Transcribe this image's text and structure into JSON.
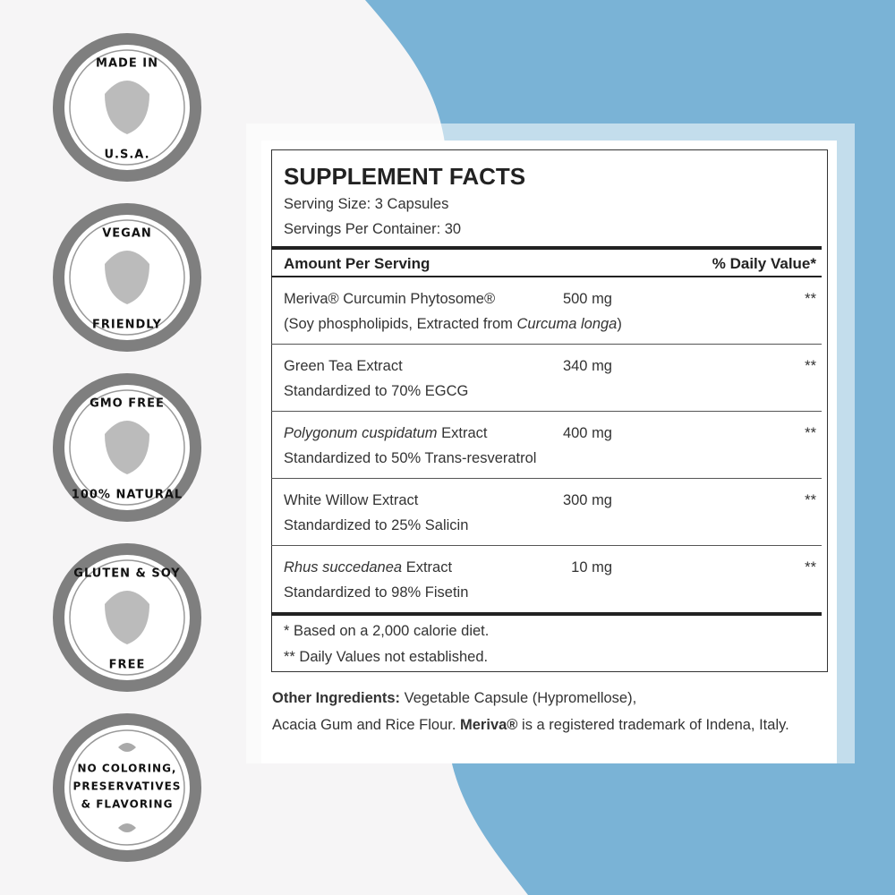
{
  "badges": [
    {
      "lines": [
        "MADE IN",
        "U.S.A."
      ]
    },
    {
      "lines": [
        "VEGAN",
        "FRIENDLY"
      ]
    },
    {
      "lines": [
        "GMO FREE",
        "100% NATURAL"
      ]
    },
    {
      "lines": [
        "GLUTEN & SOY",
        "FREE"
      ]
    },
    {
      "lines": [
        "NO COLORING,",
        "PRESERVATIVES",
        "& FLAVORING"
      ]
    }
  ],
  "facts": {
    "title": "SUPPLEMENT FACTS",
    "serving_size": "Serving Size: 3 Capsules",
    "servings_per_container": "Servings Per Container: 30",
    "header": [
      "Amount Per Serving",
      "% Daily Value*"
    ],
    "rows": [
      {
        "name": [
          "Meriva® Curcumin Phytosome®"
        ],
        "amount": "500 mg",
        "dv": "**",
        "detail": [
          "(Soy phospholipids, Extracted from",
          "Curcuma longa",
          ")"
        ]
      },
      {
        "name": [
          "Green Tea Extract"
        ],
        "amount": "340 mg",
        "dv": "**",
        "detail": [
          "Standardized to 70% EGCG"
        ]
      },
      {
        "name": [
          "Polygonum cuspidatum",
          "Extract"
        ],
        "amount": "400 mg",
        "dv": "**",
        "detail": [
          "Standardized to 50% Trans-resveratrol"
        ]
      },
      {
        "name": [
          "White Willow Extract"
        ],
        "amount": "300 mg",
        "dv": "**",
        "detail": [
          "Standardized to 25% Salicin"
        ]
      },
      {
        "name": [
          "Rhus succedanea",
          "Extract"
        ],
        "amount": "10 mg",
        "dv": "**",
        "detail": [
          "Standardized to 98% Fisetin"
        ]
      }
    ],
    "footnotes": [
      "* Based on a 2,000 calorie diet.",
      "** Daily Values not established."
    ]
  },
  "other_ingredients": {
    "label": "Other Ingredients:",
    "text": "Vegetable Capsule (Hypromellose),",
    "text2": "Acacia Gum and Rice Flour.",
    "brand": "Meriva®",
    "text3": "is a registered trademark of Indena, Italy."
  }
}
